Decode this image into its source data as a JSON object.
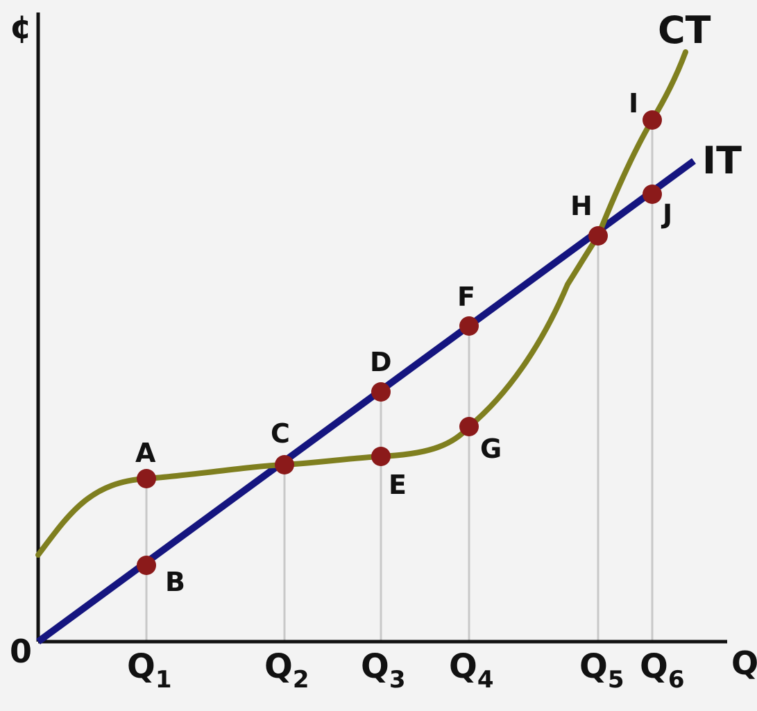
{
  "axes": {
    "y_label": "¢",
    "x_label": "Q",
    "origin_label": "0"
  },
  "curves": {
    "ct": {
      "label": "CT",
      "color": "#7f7f1f"
    },
    "it": {
      "label": "IT",
      "color": "#15157f"
    }
  },
  "points": {
    "A": "A",
    "B": "B",
    "C": "C",
    "D": "D",
    "E": "E",
    "F": "F",
    "G": "G",
    "H": "H",
    "I": "I",
    "J": "J"
  },
  "quantities": [
    {
      "main": "Q",
      "sub": "1"
    },
    {
      "main": "Q",
      "sub": "2"
    },
    {
      "main": "Q",
      "sub": "3"
    },
    {
      "main": "Q",
      "sub": "4"
    },
    {
      "main": "Q",
      "sub": "5"
    },
    {
      "main": "Q",
      "sub": "6"
    }
  ],
  "colors": {
    "background": "#f3f3f3",
    "axis": "#111111",
    "dot": "#8b1a1a",
    "guide": "#c8c8c8"
  }
}
